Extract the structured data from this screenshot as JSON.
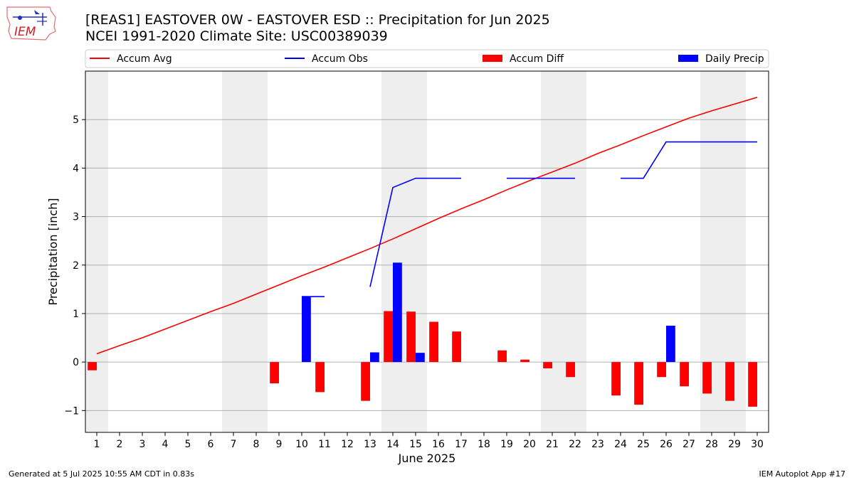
{
  "header": {
    "title": "[REAS1] EASTOVER 0W - EASTOVER ESD :: Precipitation for Jun 2025",
    "subtitle": "NCEI 1991-2020 Climate Site: USC00389039",
    "logo_text": "IEM"
  },
  "footer": {
    "left": "Generated at 5 Jul 2025 10:55 AM CDT in 0.83s",
    "right": "IEM Autoplot App #17"
  },
  "colors": {
    "avg": "#ff0000",
    "obs": "#0000ff",
    "diff": "#ff0000",
    "daily": "#0000ff",
    "weekend": "#eeeeee",
    "grid": "#b0b0b0"
  },
  "chart_data": {
    "type": "bar",
    "xlabel": "June 2025",
    "ylabel": "Precipitation [inch]",
    "xlim": [
      0.5,
      30.5
    ],
    "ylim": [
      -1.45,
      6.0
    ],
    "yticks": [
      -1,
      0,
      1,
      2,
      3,
      4,
      5
    ],
    "ytick_labels": [
      "−1",
      "0",
      "1",
      "2",
      "3",
      "4",
      "5"
    ],
    "x": [
      1,
      2,
      3,
      4,
      5,
      6,
      7,
      8,
      9,
      10,
      11,
      12,
      13,
      14,
      15,
      16,
      17,
      18,
      19,
      20,
      21,
      22,
      23,
      24,
      25,
      26,
      27,
      28,
      29,
      30
    ],
    "xtick_labels": [
      "1",
      "2",
      "3",
      "4",
      "5",
      "6",
      "7",
      "8",
      "9",
      "10",
      "11",
      "12",
      "13",
      "14",
      "15",
      "16",
      "17",
      "18",
      "19",
      "20",
      "21",
      "22",
      "23",
      "24",
      "25",
      "26",
      "27",
      "28",
      "29",
      "30"
    ],
    "weekend_spans": [
      [
        0.5,
        1.5
      ],
      [
        6.5,
        8.5
      ],
      [
        13.5,
        15.5
      ],
      [
        20.5,
        22.5
      ],
      [
        27.5,
        29.5
      ]
    ],
    "legend": {
      "placement": "top",
      "entries": [
        {
          "label": "Accum Avg",
          "kind": "line",
          "color": "#ff0000"
        },
        {
          "label": "Accum Obs",
          "kind": "line",
          "color": "#0000ff"
        },
        {
          "label": "Accum Diff",
          "kind": "bar",
          "color": "#ff0000"
        },
        {
          "label": "Daily Precip",
          "kind": "bar",
          "color": "#0000ff"
        }
      ]
    },
    "series": [
      {
        "name": "Accum Avg",
        "kind": "line",
        "values": [
          0.17,
          0.34,
          0.5,
          0.68,
          0.86,
          1.04,
          1.21,
          1.4,
          1.59,
          1.78,
          1.96,
          2.15,
          2.34,
          2.54,
          2.75,
          2.96,
          3.16,
          3.35,
          3.55,
          3.74,
          3.92,
          4.1,
          4.3,
          4.48,
          4.67,
          4.85,
          5.03,
          5.18,
          5.32,
          5.46
        ]
      },
      {
        "name": "Accum Obs",
        "kind": "line",
        "values": [
          null,
          null,
          null,
          null,
          null,
          null,
          null,
          null,
          null,
          1.35,
          1.35,
          null,
          1.55,
          3.6,
          3.79,
          3.79,
          3.79,
          null,
          3.79,
          3.79,
          3.79,
          3.79,
          null,
          3.79,
          3.79,
          4.54,
          4.54,
          4.54,
          4.54,
          4.54
        ]
      },
      {
        "name": "Accum Diff",
        "kind": "bar",
        "values": [
          -0.17,
          null,
          null,
          null,
          null,
          null,
          null,
          null,
          -0.44,
          null,
          -0.62,
          null,
          -0.8,
          1.05,
          1.04,
          0.83,
          0.63,
          null,
          0.24,
          0.05,
          -0.13,
          -0.31,
          null,
          -0.69,
          -0.88,
          -0.31,
          -0.5,
          -0.65,
          -0.8,
          -0.92
        ]
      },
      {
        "name": "Daily Precip",
        "kind": "bar",
        "values": [
          null,
          null,
          null,
          null,
          null,
          null,
          null,
          null,
          null,
          1.35,
          null,
          null,
          0.2,
          2.05,
          0.19,
          null,
          null,
          null,
          null,
          null,
          null,
          null,
          null,
          null,
          null,
          0.75,
          null,
          null,
          null,
          null
        ]
      }
    ]
  }
}
